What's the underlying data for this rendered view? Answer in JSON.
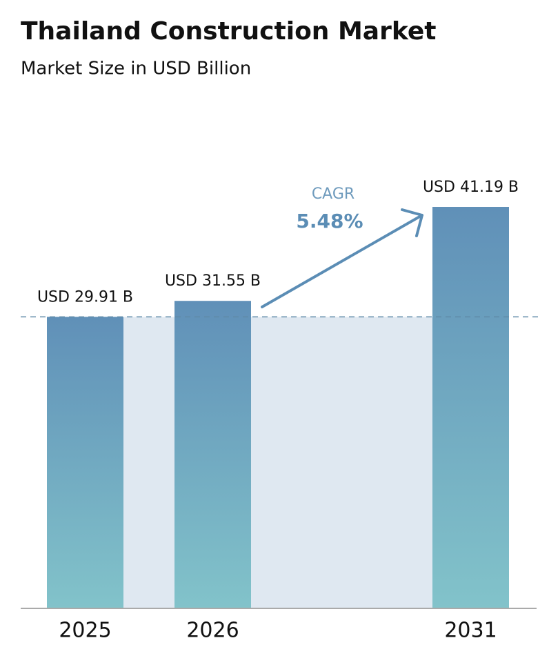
{
  "chart_data": {
    "type": "bar",
    "title": "Thailand Construction Market",
    "subtitle": "Market Size in USD Billion",
    "categories": [
      "2025",
      "2026",
      "2031"
    ],
    "values": [
      29.91,
      31.55,
      41.19
    ],
    "value_labels": [
      "USD 29.91 B",
      "USD 31.55 B",
      "USD 41.19 B"
    ],
    "annotation": {
      "label": "CAGR",
      "value": "5.48%"
    }
  }
}
